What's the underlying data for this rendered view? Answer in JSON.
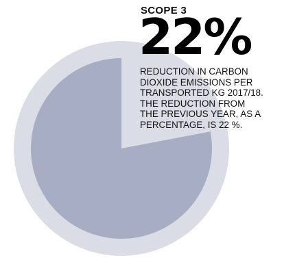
{
  "chart_data": {
    "type": "pie",
    "slices": [
      {
        "value": 22,
        "color": "#a7aec3"
      },
      {
        "value": 78,
        "color": "#dadde6"
      }
    ],
    "scope_label": "SCOPE 3",
    "headline_value": "22%",
    "description": "REDUCTION IN CARBON\nDIOXIDE EMISSIONS PER\nTRANSPORTED KG 2017/18.\nTHE REDUCTION FROM\nTHE PREVIOUS YEAR, AS A\nPERCENTAGE, IS 22 %."
  },
  "colors": {
    "outer_ring": "#dadde6",
    "inner_disc": "#a7aec3",
    "text": "#111111"
  }
}
